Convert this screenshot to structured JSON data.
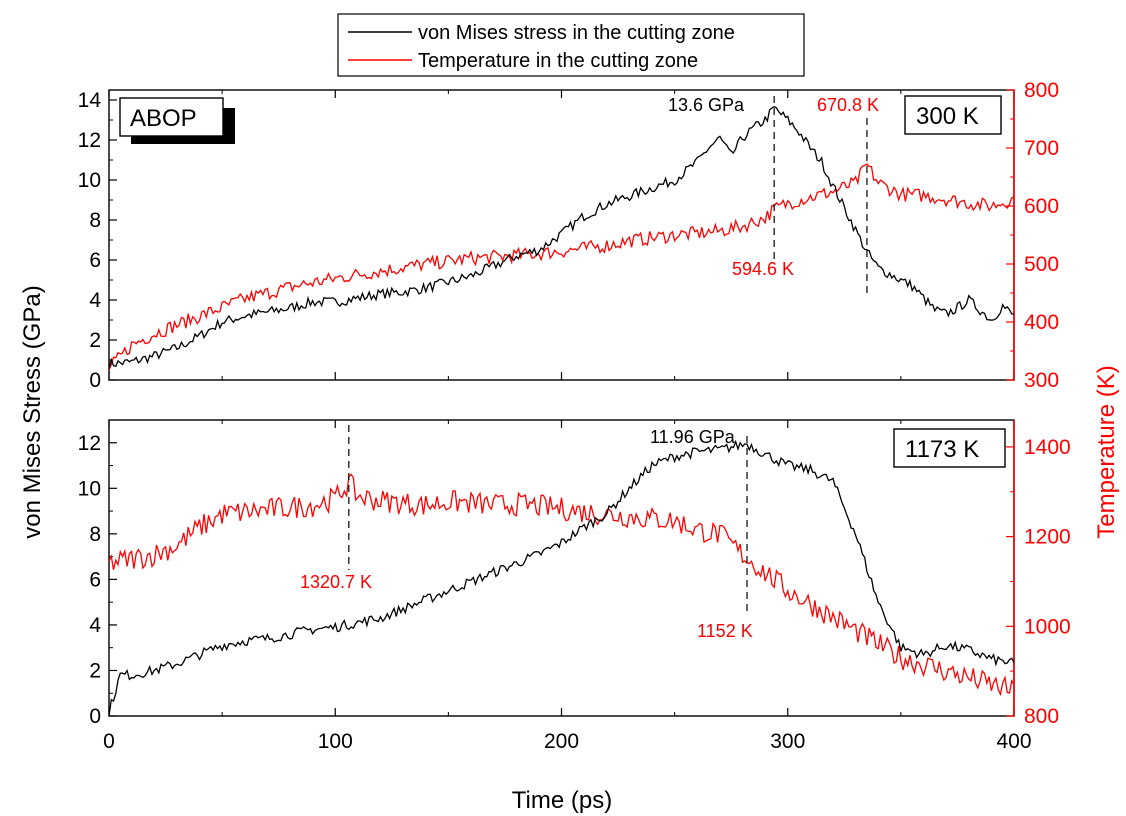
{
  "legend": {
    "items": [
      {
        "label": "von Mises stress in the cutting zone",
        "color": "#000000"
      },
      {
        "label": "Temperature in the cutting zone",
        "color": "#ff0000"
      }
    ]
  },
  "axes": {
    "x_label": "Time (ps)",
    "y_left_label": "von Mises Stress (GPa)",
    "y_right_label": "Temperature (K)"
  },
  "colors": {
    "stress": "#000000",
    "temperature": "#ff0000",
    "text": "#000000"
  },
  "chart_data": [
    {
      "type": "line",
      "panel": "top",
      "badges": [
        "ABOP",
        "300 K"
      ],
      "xlim": [
        0,
        400
      ],
      "x_ticks": [
        0,
        100,
        200,
        300,
        400
      ],
      "ylim_left": [
        0,
        14.5
      ],
      "y_ticks_left": [
        0,
        2,
        4,
        6,
        8,
        10,
        12,
        14
      ],
      "ylim_right": [
        300,
        800
      ],
      "y_ticks_right": [
        300,
        400,
        500,
        600,
        700,
        800
      ],
      "series": [
        {
          "name": "von Mises stress in the cutting zone",
          "axis": "left",
          "x": [
            0,
            10,
            20,
            30,
            40,
            50,
            60,
            70,
            80,
            90,
            100,
            110,
            120,
            130,
            140,
            150,
            160,
            170,
            180,
            190,
            200,
            210,
            220,
            230,
            240,
            250,
            260,
            265,
            270,
            275,
            280,
            285,
            290,
            294,
            300,
            305,
            310,
            315,
            320,
            325,
            330,
            335,
            340,
            345,
            350,
            355,
            360,
            365,
            370,
            375,
            380,
            385,
            390,
            395,
            400
          ],
          "y": [
            0.8,
            0.9,
            1.2,
            1.6,
            2.2,
            2.9,
            3.2,
            3.4,
            3.6,
            3.9,
            3.9,
            4.1,
            4.3,
            4.4,
            4.6,
            4.9,
            5.2,
            5.7,
            6.2,
            6.5,
            7.3,
            8.2,
            8.8,
            9.2,
            9.6,
            10.0,
            10.9,
            11.6,
            12.1,
            11.2,
            12.1,
            12.6,
            13.0,
            13.6,
            13.0,
            12.4,
            11.6,
            10.9,
            9.7,
            8.6,
            7.5,
            6.4,
            5.6,
            5.3,
            5.0,
            4.7,
            4.1,
            3.5,
            3.3,
            3.6,
            4.0,
            3.5,
            3.0,
            3.7,
            3.2
          ],
          "noise": 0.25
        },
        {
          "name": "Temperature in the cutting zone",
          "axis": "right",
          "x": [
            0,
            10,
            20,
            30,
            40,
            50,
            60,
            70,
            80,
            90,
            100,
            110,
            120,
            130,
            140,
            150,
            160,
            170,
            180,
            190,
            200,
            210,
            220,
            230,
            240,
            250,
            260,
            270,
            280,
            290,
            294,
            300,
            310,
            320,
            330,
            335,
            340,
            350,
            360,
            370,
            380,
            390,
            400
          ],
          "y": [
            320,
            360,
            380,
            395,
            410,
            425,
            440,
            450,
            460,
            468,
            475,
            482,
            488,
            494,
            500,
            505,
            510,
            512,
            515,
            518,
            522,
            527,
            532,
            540,
            545,
            550,
            553,
            557,
            565,
            580,
            594.6,
            605,
            615,
            625,
            640,
            670.8,
            640,
            620,
            618,
            612,
            605,
            600,
            612
          ],
          "noise": 12
        }
      ],
      "annotations": [
        {
          "label": "13.6 GPa",
          "x": 294,
          "color": "#000000"
        },
        {
          "label": "594.6 K",
          "x": 294,
          "color": "#ff0000"
        },
        {
          "label": "670.8 K",
          "x": 335,
          "color": "#ff0000"
        }
      ]
    },
    {
      "type": "line",
      "panel": "bottom",
      "badges": [
        "1173 K"
      ],
      "xlim": [
        0,
        400
      ],
      "x_ticks": [
        0,
        100,
        200,
        300,
        400
      ],
      "ylim_left": [
        0,
        13
      ],
      "y_ticks_left": [
        0,
        2,
        4,
        6,
        8,
        10,
        12
      ],
      "ylim_right": [
        800,
        1460
      ],
      "y_ticks_right": [
        800,
        1000,
        1200,
        1400
      ],
      "series": [
        {
          "name": "von Mises stress in the cutting zone",
          "axis": "left",
          "x": [
            0,
            5,
            10,
            20,
            30,
            40,
            50,
            60,
            70,
            80,
            90,
            100,
            110,
            120,
            130,
            140,
            150,
            160,
            170,
            180,
            190,
            200,
            210,
            220,
            230,
            240,
            250,
            260,
            270,
            282,
            290,
            300,
            310,
            320,
            330,
            340,
            350,
            360,
            370,
            380,
            390,
            400
          ],
          "y": [
            0.2,
            1.8,
            1.8,
            2.0,
            2.3,
            2.7,
            3.1,
            3.3,
            3.4,
            3.6,
            3.8,
            3.9,
            4.1,
            4.3,
            4.7,
            5.1,
            5.5,
            5.9,
            6.3,
            6.7,
            7.1,
            7.6,
            8.3,
            8.9,
            10.0,
            11.0,
            11.4,
            11.6,
            11.7,
            11.96,
            11.5,
            11.0,
            10.8,
            10.3,
            8.0,
            5.0,
            3.0,
            2.7,
            3.1,
            2.9,
            2.5,
            2.3
          ],
          "noise": 0.22
        },
        {
          "name": "Temperature in the cutting zone",
          "axis": "right",
          "x": [
            0,
            10,
            20,
            30,
            40,
            50,
            60,
            70,
            80,
            90,
            100,
            106,
            110,
            120,
            130,
            140,
            150,
            160,
            170,
            180,
            190,
            200,
            210,
            220,
            230,
            240,
            250,
            260,
            270,
            282,
            290,
            300,
            310,
            320,
            330,
            340,
            350,
            360,
            370,
            380,
            390,
            400
          ],
          "y": [
            1140,
            1150,
            1160,
            1180,
            1220,
            1250,
            1255,
            1260,
            1265,
            1270,
            1285,
            1320.7,
            1290,
            1280,
            1275,
            1270,
            1278,
            1275,
            1270,
            1272,
            1268,
            1262,
            1255,
            1250,
            1245,
            1240,
            1235,
            1215,
            1205,
            1152,
            1120,
            1080,
            1050,
            1020,
            990,
            960,
            930,
            915,
            900,
            885,
            870,
            855
          ],
          "noise": 26
        }
      ],
      "annotations": [
        {
          "label": "11.96 GPa",
          "x": 282,
          "color": "#000000"
        },
        {
          "label": "1152 K",
          "x": 282,
          "color": "#ff0000"
        },
        {
          "label": "1320.7 K",
          "x": 106,
          "color": "#ff0000"
        }
      ]
    }
  ]
}
